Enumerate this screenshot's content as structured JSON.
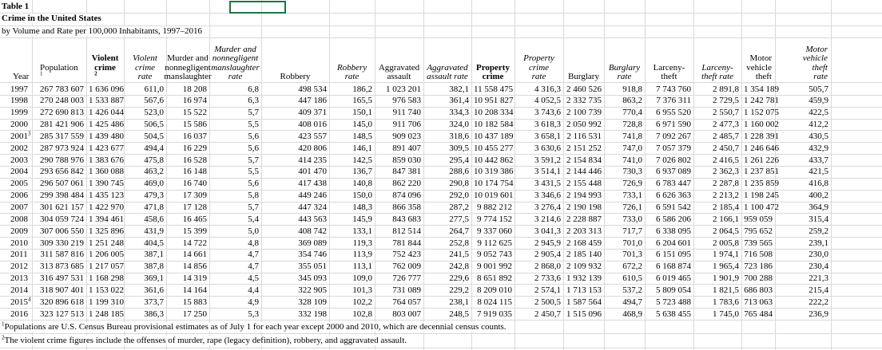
{
  "title": {
    "table_label": "Table 1",
    "heading": "Crime in the United States",
    "subheading": "by Volume and Rate per 100,000 Inhabitants, 1997–2016"
  },
  "table": {
    "header": [
      {
        "lines": [
          "Year"
        ]
      },
      {
        "lines": [
          "Population"
        ],
        "sup": "1"
      },
      {
        "lines": [
          "Violent",
          "crime"
        ],
        "sup": "2",
        "bold": true
      },
      {
        "lines": [
          "Violent",
          "crime",
          "rate"
        ],
        "italic": true
      },
      {
        "lines": [
          "Murder and",
          "nonnegligent",
          "manslaughter"
        ]
      },
      {
        "lines": [
          "Murder and",
          "nonnegligent",
          "manslaughter",
          "rate"
        ],
        "italic": true
      },
      {
        "lines": [
          "Robbery"
        ]
      },
      {
        "lines": [
          "Robbery",
          "rate"
        ],
        "italic": true
      },
      {
        "lines": [
          "Aggravated",
          "assault"
        ]
      },
      {
        "lines": [
          "Aggravated",
          "assault rate"
        ],
        "italic": true
      },
      {
        "lines": [
          "Property",
          "crime"
        ],
        "bold": true
      },
      {
        "lines": [
          "Property",
          "crime",
          "rate"
        ],
        "italic": true
      },
      {
        "lines": [
          "Burglary"
        ]
      },
      {
        "lines": [
          "Burglary",
          "rate"
        ],
        "italic": true
      },
      {
        "lines": [
          "Larceny-",
          "theft"
        ]
      },
      {
        "lines": [
          "Larceny-",
          "theft rate"
        ],
        "italic": true
      },
      {
        "lines": [
          "Motor",
          "vehicle",
          "theft"
        ]
      },
      {
        "lines": [
          "Motor",
          "vehicle",
          "theft",
          "rate"
        ],
        "italic": true
      }
    ],
    "rows": [
      {
        "cells": [
          "1997",
          "267 783 607",
          "1 636 096",
          "611,0",
          "18 208",
          "6,8",
          "498 534",
          "186,2",
          "1 023 201",
          "382,1",
          "11 558 475",
          "4 316,3",
          "2 460 526",
          "918,8",
          "7 743 760",
          "2 891,8",
          "1 354 189",
          "505,7"
        ]
      },
      {
        "cells": [
          "1998",
          "270 248 003",
          "1 533 887",
          "567,6",
          "16 974",
          "6,3",
          "447 186",
          "165,5",
          "976 583",
          "361,4",
          "10 951 827",
          "4 052,5",
          "2 332 735",
          "863,2",
          "7 376 311",
          "2 729,5",
          "1 242 781",
          "459,9"
        ]
      },
      {
        "cells": [
          "1999",
          "272 690 813",
          "1 426 044",
          "523,0",
          "15 522",
          "5,7",
          "409 371",
          "150,1",
          "911 740",
          "334,3",
          "10 208 334",
          "3 743,6",
          "2 100 739",
          "770,4",
          "6 955 520",
          "2 550,7",
          "1 152 075",
          "422,5"
        ]
      },
      {
        "cells": [
          "2000",
          "281 421 906",
          "1 425 486",
          "506,5",
          "15 586",
          "5,5",
          "408 016",
          "145,0",
          "911 706",
          "324,0",
          "10 182 584",
          "3 618,3",
          "2 050 992",
          "728,8",
          "6 971 590",
          "2 477,3",
          "1 160 002",
          "412,2"
        ]
      },
      {
        "cells": [
          "2001",
          "285 317 559",
          "1 439 480",
          "504,5",
          "16 037",
          "5,6",
          "423 557",
          "148,5",
          "909 023",
          "318,6",
          "10 437 189",
          "3 658,1",
          "2 116 531",
          "741,8",
          "7 092 267",
          "2 485,7",
          "1 228 391",
          "430,5"
        ],
        "note": "3"
      },
      {
        "cells": [
          "2002",
          "287 973 924",
          "1 423 677",
          "494,4",
          "16 229",
          "5,6",
          "420 806",
          "146,1",
          "891 407",
          "309,5",
          "10 455 277",
          "3 630,6",
          "2 151 252",
          "747,0",
          "7 057 379",
          "2 450,7",
          "1 246 646",
          "432,9"
        ]
      },
      {
        "cells": [
          "2003",
          "290 788 976",
          "1 383 676",
          "475,8",
          "16 528",
          "5,7",
          "414 235",
          "142,5",
          "859 030",
          "295,4",
          "10 442 862",
          "3 591,2",
          "2 154 834",
          "741,0",
          "7 026 802",
          "2 416,5",
          "1 261 226",
          "433,7"
        ]
      },
      {
        "cells": [
          "2004",
          "293 656 842",
          "1 360 088",
          "463,2",
          "16 148",
          "5,5",
          "401 470",
          "136,7",
          "847 381",
          "288,6",
          "10 319 386",
          "3 514,1",
          "2 144 446",
          "730,3",
          "6 937 089",
          "2 362,3",
          "1 237 851",
          "421,5"
        ]
      },
      {
        "cells": [
          "2005",
          "296 507 061",
          "1 390 745",
          "469,0",
          "16 740",
          "5,6",
          "417 438",
          "140,8",
          "862 220",
          "290,8",
          "10 174 754",
          "3 431,5",
          "2 155 448",
          "726,9",
          "6 783 447",
          "2 287,8",
          "1 235 859",
          "416,8"
        ]
      },
      {
        "cells": [
          "2006",
          "299 398 484",
          "1 435 123",
          "479,3",
          "17 309",
          "5,8",
          "449 246",
          "150,0",
          "874 096",
          "292,0",
          "10 019 601",
          "3 346,6",
          "2 194 993",
          "733,1",
          "6 626 363",
          "2 213,2",
          "1 198 245",
          "400,2"
        ]
      },
      {
        "cells": [
          "2007",
          "301 621 157",
          "1 422 970",
          "471,8",
          "17 128",
          "5,7",
          "447 324",
          "148,3",
          "866 358",
          "287,2",
          "9 882 212",
          "3 276,4",
          "2 190 198",
          "726,1",
          "6 591 542",
          "2 185,4",
          "1 100 472",
          "364,9"
        ]
      },
      {
        "cells": [
          "2008",
          "304 059 724",
          "1 394 461",
          "458,6",
          "16 465",
          "5,4",
          "443 563",
          "145,9",
          "843 683",
          "277,5",
          "9 774 152",
          "3 214,6",
          "2 228 887",
          "733,0",
          "6 586 206",
          "2 166,1",
          "959 059",
          "315,4"
        ]
      },
      {
        "cells": [
          "2009",
          "307 006 550",
          "1 325 896",
          "431,9",
          "15 399",
          "5,0",
          "408 742",
          "133,1",
          "812 514",
          "264,7",
          "9 337 060",
          "3 041,3",
          "2 203 313",
          "717,7",
          "6 338 095",
          "2 064,5",
          "795 652",
          "259,2"
        ]
      },
      {
        "cells": [
          "2010",
          "309 330 219",
          "1 251 248",
          "404,5",
          "14 722",
          "4,8",
          "369 089",
          "119,3",
          "781 844",
          "252,8",
          "9 112 625",
          "2 945,9",
          "2 168 459",
          "701,0",
          "6 204 601",
          "2 005,8",
          "739 565",
          "239,1"
        ]
      },
      {
        "cells": [
          "2011",
          "311 587 816",
          "1 206 005",
          "387,1",
          "14 661",
          "4,7",
          "354 746",
          "113,9",
          "752 423",
          "241,5",
          "9 052 743",
          "2 905,4",
          "2 185 140",
          "701,3",
          "6 151 095",
          "1 974,1",
          "716 508",
          "230,0"
        ]
      },
      {
        "cells": [
          "2012",
          "313 873 685",
          "1 217 057",
          "387,8",
          "14 856",
          "4,7",
          "355 051",
          "113,1",
          "762 009",
          "242,8",
          "9 001 992",
          "2 868,0",
          "2 109 932",
          "672,2",
          "6 168 874",
          "1 965,4",
          "723 186",
          "230,4"
        ]
      },
      {
        "cells": [
          "2013",
          "316 497 531",
          "1 168 298",
          "369,1",
          "14 319",
          "4,5",
          "345 093",
          "109,0",
          "726 777",
          "229,6",
          "8 651 892",
          "2 733,6",
          "1 932 139",
          "610,5",
          "6 019 465",
          "1 901,9",
          "700 288",
          "221,3"
        ]
      },
      {
        "cells": [
          "2014",
          "318 907 401",
          "1 153 022",
          "361,6",
          "14 164",
          "4,4",
          "322 905",
          "101,3",
          "731 089",
          "229,2",
          "8 209 010",
          "2 574,1",
          "1 713 153",
          "537,2",
          "5 809 054",
          "1 821,5",
          "686 803",
          "215,4"
        ]
      },
      {
        "cells": [
          "2015",
          "320 896 618",
          "1 199 310",
          "373,7",
          "15 883",
          "4,9",
          "328 109",
          "102,2",
          "764 057",
          "238,1",
          "8 024 115",
          "2 500,5",
          "1 587 564",
          "494,7",
          "5 723 488",
          "1 783,6",
          "713 063",
          "222,2"
        ],
        "note": "4"
      },
      {
        "cells": [
          "2016",
          "323 127 513",
          "1 248 185",
          "386,3",
          "17 250",
          "5,3",
          "332 198",
          "102,8",
          "803 007",
          "248,5",
          "7 919 035",
          "2 450,7",
          "1 515 096",
          "468,9",
          "5 638 455",
          "1 745,0",
          "765 484",
          "236,9"
        ]
      }
    ]
  },
  "footnotes": [
    {
      "mark": "1",
      "text": "Populations are U.S. Census Bureau provisional estimates as of July 1 for each year except 2000 and 2010, which are decennial census counts."
    },
    {
      "mark": "2",
      "text": "The violent crime figures include the offenses of murder, rape (legacy definition), robbery, and aggravated assault."
    }
  ]
}
